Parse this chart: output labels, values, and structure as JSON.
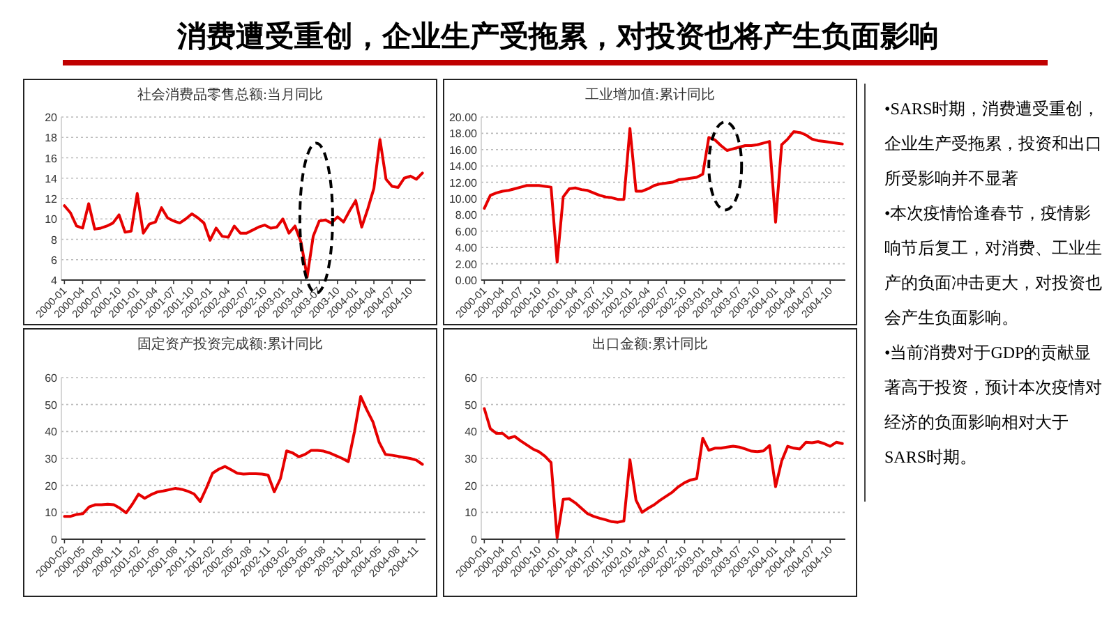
{
  "chart_data": [
    {
      "type": "other",
      "title": "消费遭受重创，企业生产受拖累，对投资也将产生负面影响"
    },
    {
      "type": "line",
      "title": "社会消费品零售总额:当月同比",
      "color": "#e60000",
      "grid": "y",
      "ylim": [
        4,
        20
      ],
      "yticks": [
        4,
        6,
        8,
        10,
        12,
        14,
        16,
        18,
        20
      ],
      "categories": [
        "2000-01",
        null,
        null,
        "2000-04",
        null,
        null,
        "2000-07",
        null,
        null,
        "2000-10",
        null,
        null,
        "2001-01",
        null,
        null,
        "2001-04",
        null,
        null,
        "2001-07",
        null,
        null,
        "2001-10",
        null,
        null,
        "2002-01",
        null,
        null,
        "2002-04",
        null,
        null,
        "2002-07",
        null,
        null,
        "2002-10",
        null,
        null,
        "2003-01",
        null,
        null,
        "2003-04",
        null,
        null,
        "2003-07",
        null,
        null,
        "2003-10",
        null,
        null,
        "2004-01",
        null,
        null,
        "2004-04",
        null,
        null,
        "2004-07",
        null,
        null,
        "2004-10",
        null,
        null
      ],
      "values": [
        11.3,
        10.6,
        9.3,
        9.1,
        11.5,
        9.0,
        9.1,
        9.3,
        9.6,
        10.4,
        8.7,
        8.8,
        12.5,
        8.6,
        9.5,
        9.7,
        11.1,
        10.1,
        9.8,
        9.6,
        10.0,
        10.5,
        10.1,
        9.6,
        7.9,
        9.1,
        8.3,
        8.2,
        9.3,
        8.6,
        8.6,
        8.9,
        9.2,
        9.4,
        9.1,
        9.2,
        10.0,
        8.6,
        9.3,
        7.7,
        4.3,
        8.3,
        9.8,
        9.9,
        9.6,
        10.2,
        9.7,
        10.8,
        11.8,
        9.2,
        11.0,
        13.0,
        17.8,
        13.9,
        13.2,
        13.1,
        14.0,
        14.2,
        13.9,
        14.5
      ]
    },
    {
      "type": "line",
      "title": "工业增加值:累计同比",
      "color": "#e60000",
      "grid": "y",
      "ylim": [
        0,
        20
      ],
      "yticks": [
        {
          "value": 0,
          "label": "0.00"
        },
        {
          "value": 2,
          "label": "2.00"
        },
        {
          "value": 4,
          "label": "4.00"
        },
        {
          "value": 6,
          "label": "6.00"
        },
        {
          "value": 8,
          "label": "8.00"
        },
        {
          "value": 10,
          "label": "10.00"
        },
        {
          "value": 12,
          "label": "12.00"
        },
        {
          "value": 14,
          "label": "14.00"
        },
        {
          "value": 16,
          "label": "16.00"
        },
        {
          "value": 18,
          "label": "18.00"
        },
        {
          "value": 20,
          "label": "20.00"
        }
      ],
      "categories": [
        "2000-01",
        null,
        null,
        "2000-04",
        null,
        null,
        "2000-07",
        null,
        null,
        "2000-10",
        null,
        null,
        "2001-01",
        null,
        null,
        "2001-04",
        null,
        null,
        "2001-07",
        null,
        null,
        "2001-10",
        null,
        null,
        "2002-01",
        null,
        null,
        "2002-04",
        null,
        null,
        "2002-07",
        null,
        null,
        "2002-10",
        null,
        null,
        "2003-01",
        null,
        null,
        "2003-04",
        null,
        null,
        "2003-07",
        null,
        null,
        "2003-10",
        null,
        null,
        "2004-01",
        null,
        null,
        "2004-04",
        null,
        null,
        "2004-07",
        null,
        null,
        "2004-10",
        null,
        null
      ],
      "values": [
        8.8,
        10.4,
        10.7,
        10.9,
        11.0,
        11.2,
        11.4,
        11.6,
        11.6,
        11.6,
        11.5,
        11.4,
        2.2,
        10.2,
        11.2,
        11.3,
        11.1,
        11.0,
        10.7,
        10.4,
        10.2,
        10.1,
        9.9,
        9.9,
        18.6,
        10.9,
        10.9,
        11.2,
        11.6,
        11.8,
        11.9,
        12.0,
        12.3,
        12.4,
        12.5,
        12.6,
        13.0,
        17.5,
        17.2,
        16.5,
        15.9,
        16.1,
        16.3,
        16.5,
        16.5,
        16.6,
        16.8,
        17.0,
        7.1,
        16.6,
        17.3,
        18.2,
        18.1,
        17.8,
        17.3,
        17.1,
        17.0,
        16.9,
        16.8,
        16.7
      ]
    },
    {
      "type": "line",
      "title": "固定资产投资完成额:累计同比",
      "color": "#e60000",
      "grid": "y",
      "ylim": [
        0,
        60
      ],
      "yticks": [
        0,
        10,
        20,
        30,
        40,
        50,
        60
      ],
      "categories": [
        "2000-02",
        null,
        null,
        "2000-05",
        null,
        null,
        "2000-08",
        null,
        null,
        "2000-11",
        null,
        null,
        "2001-02",
        null,
        null,
        "2001-05",
        null,
        null,
        "2001-08",
        null,
        null,
        "2001-11",
        null,
        null,
        "2002-02",
        null,
        null,
        "2002-05",
        null,
        null,
        "2002-08",
        null,
        null,
        "2002-11",
        null,
        null,
        "2003-02",
        null,
        null,
        "2003-05",
        null,
        null,
        "2003-08",
        null,
        null,
        "2003-11",
        null,
        null,
        "2004-02",
        null,
        null,
        "2004-05",
        null,
        null,
        "2004-08",
        null,
        null,
        "2004-11",
        null
      ],
      "values": [
        8.5,
        8.5,
        9.2,
        9.5,
        12.0,
        12.8,
        12.8,
        13.0,
        12.8,
        11.5,
        9.8,
        13.0,
        16.7,
        15.2,
        16.5,
        17.5,
        17.9,
        18.4,
        18.9,
        18.5,
        17.8,
        16.8,
        14.0,
        19.0,
        24.5,
        26.0,
        27.0,
        25.8,
        24.5,
        24.2,
        24.3,
        24.3,
        24.2,
        23.8,
        17.6,
        22.5,
        32.8,
        32.0,
        30.6,
        31.5,
        33.0,
        33.0,
        32.7,
        32.0,
        31.0,
        30.0,
        28.8,
        40.0,
        53.0,
        48.0,
        43.5,
        36.0,
        31.5,
        31.2,
        30.8,
        30.4,
        30.0,
        29.4,
        27.8
      ]
    },
    {
      "type": "line",
      "title": "出口金额:累计同比",
      "color": "#e60000",
      "grid": "y",
      "ylim": [
        0,
        60
      ],
      "yticks": [
        0,
        10,
        20,
        30,
        40,
        50,
        60
      ],
      "categories": [
        "2000-01",
        null,
        null,
        "2000-04",
        null,
        null,
        "2000-07",
        null,
        null,
        "2000-10",
        null,
        null,
        "2001-01",
        null,
        null,
        "2001-04",
        null,
        null,
        "2001-07",
        null,
        null,
        "2001-10",
        null,
        null,
        "2002-01",
        null,
        null,
        "2002-04",
        null,
        null,
        "2002-07",
        null,
        null,
        "2002-10",
        null,
        null,
        "2003-01",
        null,
        null,
        "2003-04",
        null,
        null,
        "2003-07",
        null,
        null,
        "2003-10",
        null,
        null,
        "2004-01",
        null,
        null,
        "2004-04",
        null,
        null,
        "2004-07",
        null,
        null,
        "2004-10",
        null,
        null
      ],
      "values": [
        48.5,
        41.0,
        39.3,
        39.3,
        37.5,
        38.2,
        36.5,
        35.0,
        33.5,
        32.5,
        30.8,
        28.5,
        0.5,
        14.8,
        15.0,
        13.5,
        11.5,
        9.5,
        8.5,
        7.8,
        7.2,
        6.5,
        6.3,
        6.8,
        29.5,
        14.5,
        10.0,
        11.5,
        12.8,
        14.5,
        16.0,
        17.5,
        19.5,
        21.0,
        22.0,
        22.5,
        37.5,
        33.0,
        33.8,
        33.8,
        34.2,
        34.5,
        34.2,
        33.5,
        32.7,
        32.5,
        32.8,
        34.8,
        19.5,
        29.0,
        34.5,
        33.8,
        33.5,
        36.0,
        35.8,
        36.2,
        35.5,
        34.5,
        36.0,
        35.5
      ]
    },
    {
      "type": "other",
      "annotations": [
        "•SARS时期，消费遭受重创，企业生产受拖累，投资和出口所受影响并不显著",
        "•本次疫情恰逢春节，疫情影响节后复工，对消费、工业生产的负面冲击更大，对投资也会产生负面影响。",
        "•当前消费对于GDP的贡献显著高于投资，预计本次疫情对经济的负面影响相对大于SARS时期。"
      ]
    }
  ]
}
